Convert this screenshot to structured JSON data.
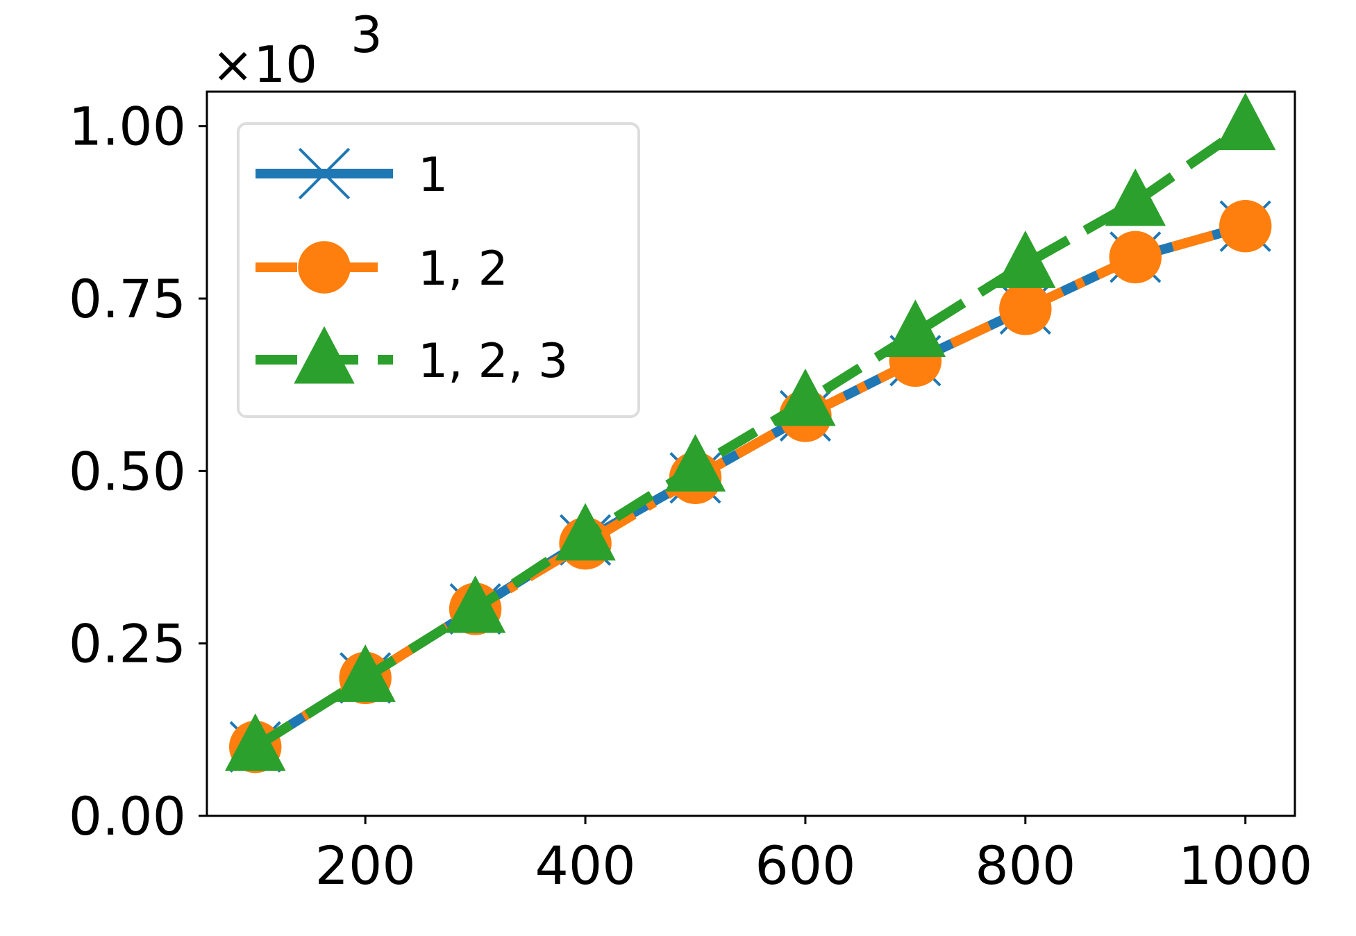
{
  "chart_data": {
    "type": "line",
    "title": "",
    "xlabel": "",
    "ylabel": "",
    "y_scale_label": "×10",
    "y_scale_exponent": "3",
    "xlim": [
      56,
      1045
    ],
    "ylim": [
      0,
      1.05
    ],
    "x_ticks": [
      200,
      400,
      600,
      800,
      1000
    ],
    "x_tick_labels": [
      "200",
      "400",
      "600",
      "800",
      "1000"
    ],
    "y_ticks": [
      0,
      0.25,
      0.5,
      0.75,
      1.0
    ],
    "y_tick_labels": [
      "0.00",
      "0.25",
      "0.50",
      "0.75",
      "1.00"
    ],
    "grid": false,
    "legend_position": "upper-left",
    "x": [
      100,
      200,
      300,
      400,
      500,
      600,
      700,
      800,
      900,
      1000
    ],
    "series": [
      {
        "name": "1",
        "color": "#1f77b4",
        "marker": "x",
        "linestyle": "solid",
        "values": [
          0.1,
          0.2,
          0.3,
          0.4,
          0.49,
          0.58,
          0.66,
          0.735,
          0.81,
          0.855
        ]
      },
      {
        "name": "1, 2",
        "color": "#ff7f0e",
        "marker": "circle",
        "linestyle": "dashdot",
        "values": [
          0.1,
          0.2,
          0.3,
          0.395,
          0.49,
          0.58,
          0.66,
          0.735,
          0.81,
          0.855
        ]
      },
      {
        "name": "1, 2, 3",
        "color": "#2ca02c",
        "marker": "triangle",
        "linestyle": "dashed",
        "values": [
          0.1,
          0.2,
          0.3,
          0.405,
          0.505,
          0.6,
          0.7,
          0.8,
          0.89,
          1.0
        ]
      }
    ]
  }
}
